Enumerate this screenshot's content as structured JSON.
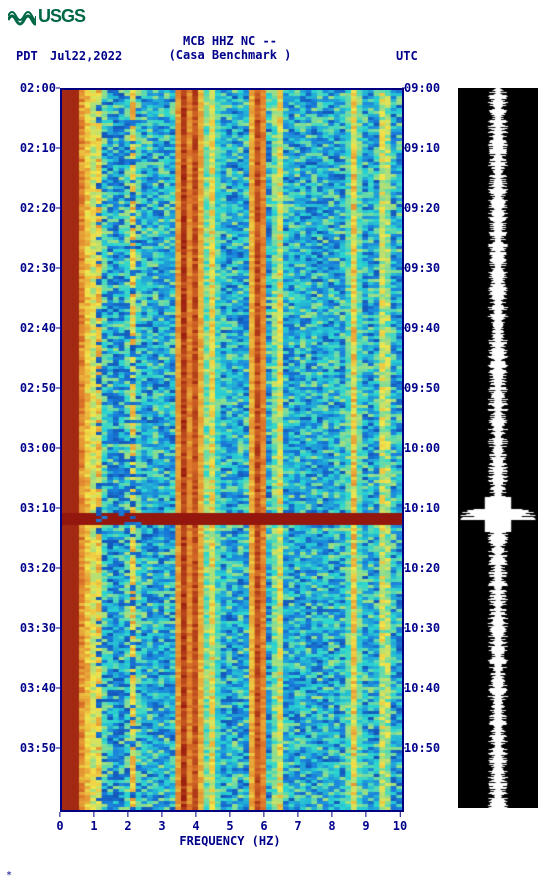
{
  "logo_text": "USGS",
  "header": {
    "line1": "MCB HHZ NC --",
    "line2": "(Casa Benchmark )",
    "left_tz": "PDT",
    "date": "Jul22,2022",
    "right_tz": "UTC"
  },
  "chart": {
    "type": "spectrogram",
    "xlabel": "FREQUENCY (HZ)",
    "xlim": [
      0,
      10
    ],
    "xtick_step": 1,
    "xticks": [
      "0",
      "1",
      "2",
      "3",
      "4",
      "5",
      "6",
      "7",
      "8",
      "9",
      "10"
    ],
    "left_time_labels": [
      "02:00",
      "02:10",
      "02:20",
      "02:30",
      "02:40",
      "02:50",
      "03:00",
      "03:10",
      "03:20",
      "03:30",
      "03:40",
      "03:50"
    ],
    "right_time_labels": [
      "09:00",
      "09:10",
      "09:20",
      "09:30",
      "09:40",
      "09:50",
      "10:00",
      "10:10",
      "10:20",
      "10:30",
      "10:40",
      "10:50"
    ],
    "time_minutes_span": 120,
    "label_minute_step": 10,
    "axis_color": "#00008b",
    "background_color": "#ffffff",
    "plot_border_color": "#000080",
    "colormap": {
      "low": "#0b1f8a",
      "midlow": "#1a7fdc",
      "mid": "#2bd6d0",
      "midhigh": "#f3e54a",
      "high": "#e07b2c",
      "vhigh": "#8b0a0a"
    },
    "freq_cols": 60,
    "time_rows": 240,
    "hot_bands_hz": [
      0.3,
      3.5,
      3.8,
      5.7
    ],
    "warm_bands_hz": [
      1.0,
      2.0,
      4.3,
      6.3,
      8.5,
      9.4
    ],
    "event_row_minute": 71,
    "event2_row_minute": 72,
    "label_fontsize": 12,
    "title_fontsize": 12
  },
  "side_trace": {
    "background": "#000000",
    "trace_color": "#ffffff",
    "n_samples": 720,
    "amp_base": 0.15,
    "amp_event": 0.95,
    "event_minute": 71
  },
  "footer_mark": "*"
}
